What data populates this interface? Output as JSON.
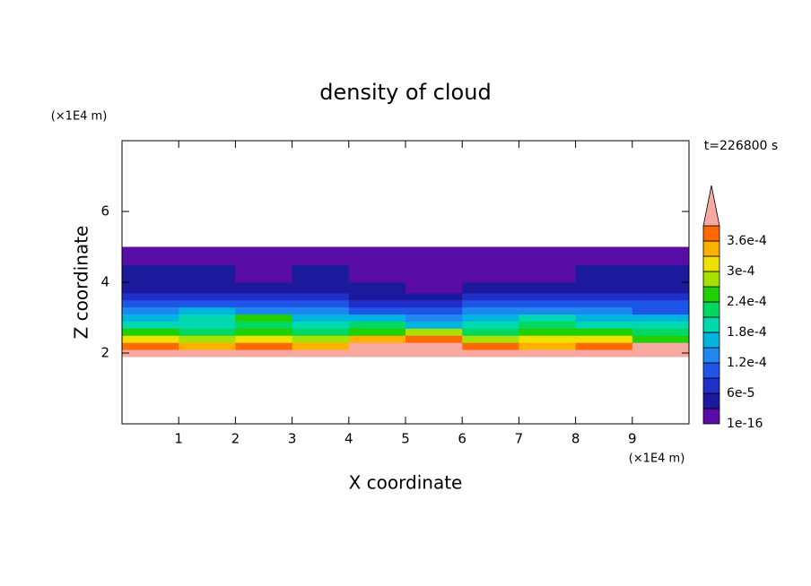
{
  "chart_data": {
    "type": "heatmap",
    "title": "density of cloud",
    "xlabel": "X coordinate",
    "ylabel": "Z coordinate",
    "xunit": "(×1E4 m)",
    "yunit": "(×1E4 m)",
    "time_label": "t=226800 s",
    "xlim": [
      0,
      10
    ],
    "ylim": [
      0,
      8
    ],
    "xticks": [
      1,
      2,
      3,
      4,
      5,
      6,
      7,
      8,
      9
    ],
    "yticks": [
      2,
      4,
      6
    ],
    "x_edges": [
      0,
      1,
      2,
      3,
      4,
      5,
      6,
      7,
      8,
      9,
      10
    ],
    "z_edges": [
      1.9,
      2.1,
      2.3,
      2.5,
      2.7,
      2.9,
      3.1,
      3.3,
      3.5,
      3.7,
      4.0,
      4.5,
      5.0
    ],
    "values": [
      [
        0.00043,
        0.00041,
        0.00044,
        0.00042,
        0.0004,
        0.00043,
        0.00041,
        0.00042,
        0.00044,
        0.00042
      ],
      [
        0.00037,
        0.00034,
        0.00038,
        0.00035,
        0.00039,
        0.00041,
        0.00036,
        0.00033,
        0.00037,
        0.0004
      ],
      [
        0.0003,
        0.00027,
        0.00032,
        0.00029,
        0.00033,
        0.00036,
        0.00028,
        0.00031,
        0.0003,
        0.00026
      ],
      [
        0.00024,
        0.00022,
        0.00026,
        0.00023,
        0.00025,
        0.00027,
        0.00021,
        0.00025,
        0.00024,
        0.00022
      ],
      [
        0.0002,
        0.00018,
        0.00022,
        0.00019,
        0.00021,
        0.00017,
        0.00018,
        0.00023,
        0.00019,
        0.0002
      ],
      [
        0.00016,
        0.00019,
        0.00024,
        0.00015,
        0.00017,
        0.00013,
        0.00016,
        0.00018,
        0.00015,
        0.00017
      ],
      [
        0.00013,
        0.00015,
        0.00014,
        0.00012,
        0.00011,
        0.0001,
        0.00012,
        0.00014,
        0.00013,
        0.00011
      ],
      [
        9e-05,
        0.00011,
        0.0001,
        9e-05,
        8e-05,
        7e-05,
        9e-05,
        0.0001,
        9e-05,
        0.0001
      ],
      [
        7e-05,
        6e-05,
        7e-05,
        6e-05,
        5e-05,
        4e-05,
        6e-05,
        7e-05,
        6e-05,
        7e-05
      ],
      [
        5e-05,
        4e-05,
        5e-05,
        4e-05,
        4e-05,
        2e-05,
        3e-05,
        5e-05,
        5e-05,
        4e-05
      ],
      [
        3e-05,
        3e-05,
        2e-05,
        3e-05,
        2e-05,
        1e-05,
        1e-05,
        2e-05,
        3e-05,
        3e-05
      ],
      [
        1e-05,
        1e-05,
        1e-05,
        1e-05,
        1e-05,
        5e-06,
        5e-06,
        1e-05,
        1e-05,
        1e-05
      ]
    ],
    "levels": [
      1e-16,
      3e-05,
      6e-05,
      9e-05,
      0.00012,
      0.00015,
      0.00018,
      0.00021,
      0.00024,
      0.00027,
      0.0003,
      0.00033,
      0.00036,
      0.00039
    ],
    "colors": [
      "#5a0ca6",
      "#1c1a9c",
      "#1f2fc8",
      "#1f55e6",
      "#1e88f0",
      "#00b4e0",
      "#00d8b0",
      "#00d860",
      "#20d000",
      "#a8e000",
      "#f0e000",
      "#ffb000",
      "#ff6a00",
      "#f7a8a0"
    ],
    "cbarticks": [
      1e-16,
      {
        "value": 6e-05,
        "label": "6e-5"
      },
      {
        "value": 0.00012,
        "label": "1.2e-4"
      },
      {
        "value": 0.00018,
        "label": "1.8e-4"
      },
      {
        "value": 0.00024,
        "label": "2.4e-4"
      },
      {
        "value": 0.0003,
        "label": "3e-4"
      },
      {
        "value": 0.00036,
        "label": "3.6e-4"
      }
    ]
  }
}
